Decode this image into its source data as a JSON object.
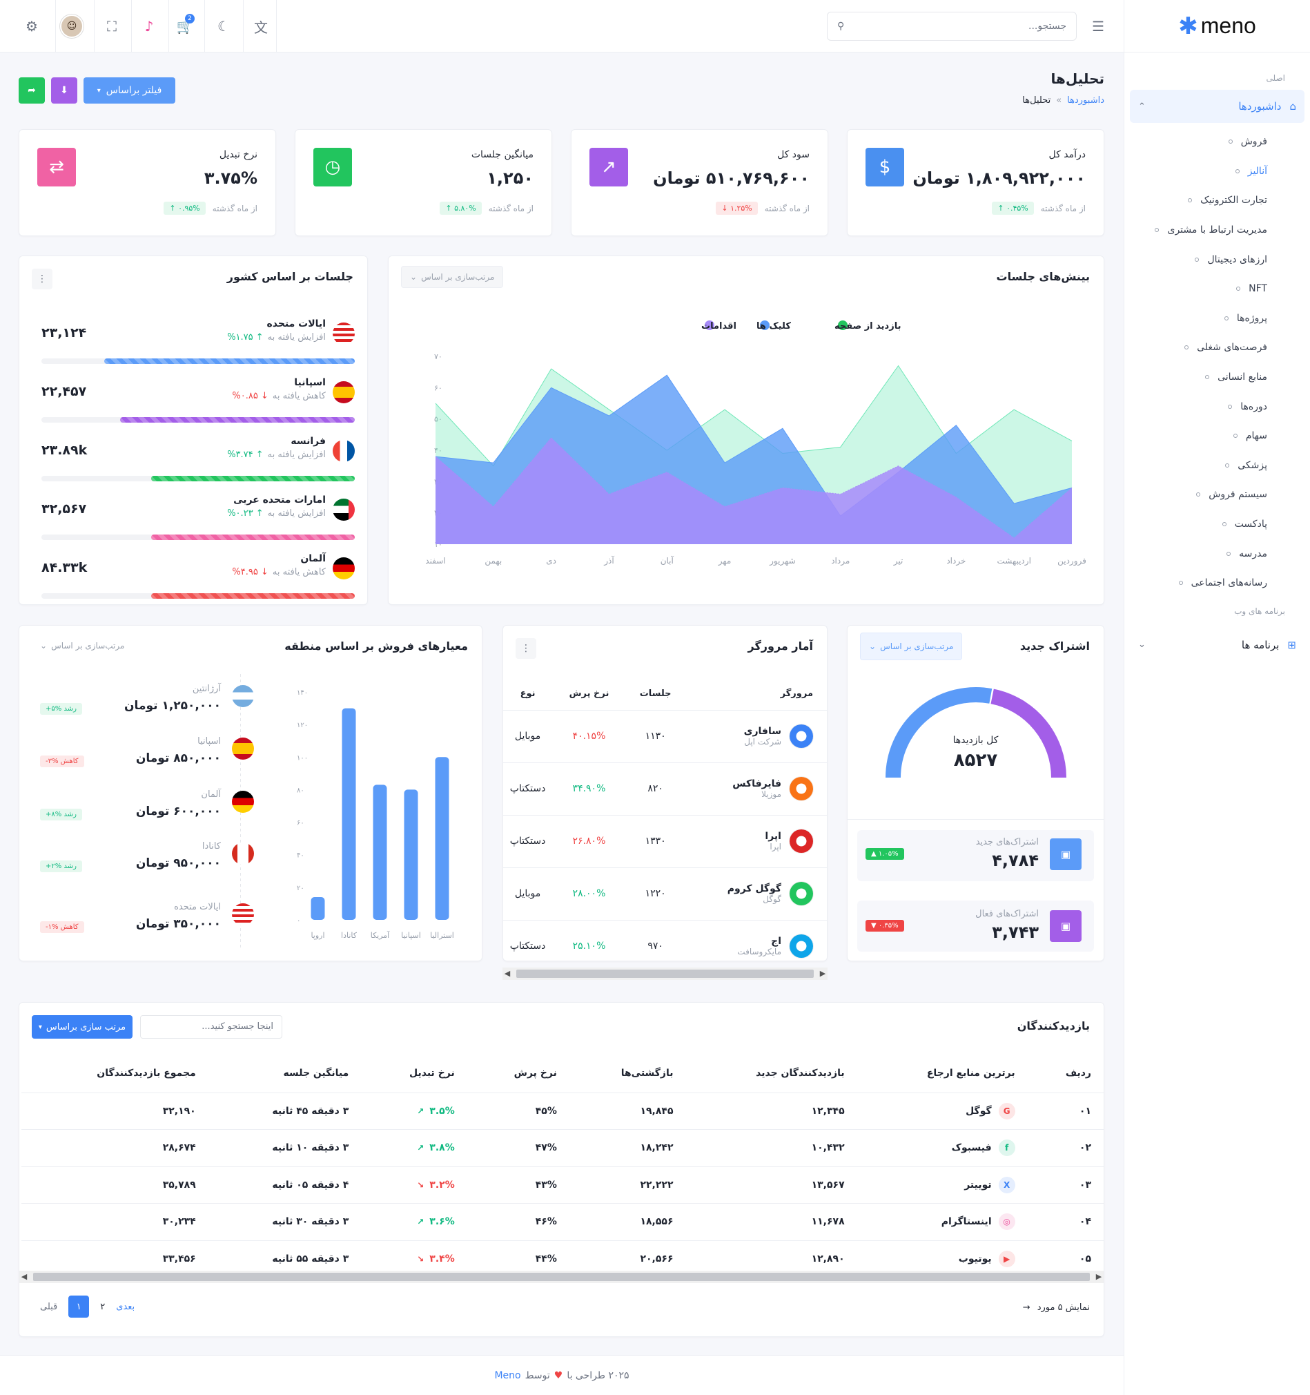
{
  "brand": {
    "name": "meno"
  },
  "sidebar": {
    "caption_main": "اصلی",
    "dashboards_label": "داشبوردها",
    "items": [
      "فروش",
      "آنالیز",
      "تجارت الکترونیک",
      "مدیریت ارتباط با مشتری",
      "ارزهای دیجیتال",
      "NFT",
      "پروژه‌ها",
      "فرصت‌های شغلی",
      "منابع انسانی",
      "دوره‌ها",
      "سهام",
      "پزشکی",
      "سیستم فروش",
      "پادکست",
      "مدرسه",
      "رسانه‌های اجتماعی"
    ],
    "active_item": "آنالیز",
    "caption_web": "برنامه های وب",
    "apps_label": "برنامه ها"
  },
  "header": {
    "search_placeholder": "جستجو...",
    "cart_badge": "2"
  },
  "page": {
    "title": "تحلیل‌ها",
    "breadcrumb_parent": "داشبوردها",
    "breadcrumb_sep": "»",
    "breadcrumb_current": "تحلیل‌ها",
    "filter_button": "فیلتر براساس"
  },
  "stats": [
    {
      "label": "درآمد کل",
      "value": "۱,۸۰۹,۹۲۲,۰۰۰ تومان",
      "change": "۰.۴۵% ↑",
      "dir": "up",
      "since": "از ماه گذشته",
      "icon": "dollar-icon",
      "color": "#4a90f0"
    },
    {
      "label": "سود کل",
      "value": "۵۱۰,۷۶۹,۶۰۰ تومان",
      "change": "۱.۲۵% ↓",
      "dir": "down",
      "since": "از ماه گذشته",
      "icon": "trending-up-icon",
      "color": "#a35ee8"
    },
    {
      "label": "میانگین جلسات",
      "value": "۱,۲۵۰",
      "change": "۵.۸۰% ↑",
      "dir": "up",
      "since": "از ماه گذشته",
      "icon": "stopwatch-icon",
      "color": "#22c55e"
    },
    {
      "label": "نرخ تبدیل",
      "value": "۳.۷۵%",
      "change": "۰.۹۵% ↑",
      "dir": "up",
      "since": "از ماه گذشته",
      "icon": "exchange-icon",
      "color": "#f062a4"
    }
  ],
  "sessions_chart": {
    "title": "بینش‌های جلسات",
    "sort_label": "مرتب‌سازی بر اساس",
    "chart_data": {
      "type": "area",
      "categories": [
        "فروردین",
        "اردیبهشت",
        "خرداد",
        "تیر",
        "مرداد",
        "شهریور",
        "مهر",
        "آبان",
        "آذر",
        "دی",
        "بهمن",
        "اسفند"
      ],
      "y_ticks": [
        "۱۰",
        "۲۰",
        "۳۰",
        "۴۰",
        "۵۰",
        "۶۰",
        "۷۰"
      ],
      "ylim": [
        10,
        70
      ],
      "series": [
        {
          "name": "بازدید از صفحه",
          "color": "#6ee7b7",
          "values": [
            43,
            53,
            39,
            67,
            41,
            39,
            53,
            40,
            53,
            66,
            35,
            55
          ]
        },
        {
          "name": "کلیک ها",
          "color": "#5b9bf8",
          "values": [
            28,
            23,
            48,
            33,
            19,
            47,
            36,
            64,
            51,
            60,
            36,
            38
          ]
        },
        {
          "name": "اقدامات",
          "color": "#a78bfa",
          "values": [
            28,
            12,
            25,
            35,
            26,
            28,
            22,
            33,
            26,
            44,
            22,
            38
          ]
        }
      ]
    }
  },
  "country_sessions": {
    "title": "جلسات بر اساس کشور",
    "rows": [
      {
        "name": "ایالات متحده",
        "sub": "افزایش یافته به",
        "pct": "↑ %۱.۷۵",
        "dir": "up",
        "value": "۲۳,۱۲۴",
        "progress": 0.8,
        "color": "#5b9bf8"
      },
      {
        "name": "اسپانیا",
        "sub": "کاهش یافته به",
        "pct": "↓ %۰.۸۵",
        "dir": "down",
        "value": "۲۲,۴۵۷",
        "progress": 0.75,
        "color": "#a35ee8"
      },
      {
        "name": "فرانسه",
        "sub": "افزایش یافته به",
        "pct": "↑ %۳.۷۴",
        "dir": "up",
        "value": "۲۳.۸۹k",
        "progress": 0.65,
        "color": "#22c55e"
      },
      {
        "name": "امارات متحده عربی",
        "sub": "افزایش یافته به",
        "pct": "↑ %۰.۲۳",
        "dir": "up",
        "value": "۳۲,۵۶۷",
        "progress": 0.65,
        "color": "#f062a4"
      },
      {
        "name": "آلمان",
        "sub": "کاهش یافته به",
        "pct": "↓ %۴.۹۵",
        "dir": "down",
        "value": "۸۴.۳۳k",
        "progress": 0.65,
        "color": "#f05252"
      }
    ]
  },
  "subscription": {
    "title": "اشتراک جدید",
    "sort_label": "مرتب‌سازی بر اساس",
    "gauge_label": "کل بازدیدها",
    "gauge_value": "۸۵۲۷",
    "gauge_split": 0.56,
    "new_label": "اشتراک‌های جدید",
    "new_value": "۴,۷۸۴",
    "new_change": "۱.۰۵% ▲",
    "active_label": "اشتراک‌های فعال",
    "active_value": "۳,۷۴۳",
    "active_change": "۰.۳۵% ▼"
  },
  "browsers": {
    "title": "آمار مرورگر",
    "headers": {
      "browser": "مرورگر",
      "sessions": "جلسات",
      "bounce": "نرخ پرش",
      "type": "نوع"
    },
    "rows": [
      {
        "name": "سافاری",
        "company": "شرکت اپل",
        "sessions": "۱۱۳۰",
        "bounce": "۴۰.۱۵%",
        "dir": "down",
        "type": "موبایل",
        "icon": "safari-icon",
        "color": "#3b82f6"
      },
      {
        "name": "فایرفاکس",
        "company": "موزیلا",
        "sessions": "۸۲۰",
        "bounce": "۳۴.۹۰%",
        "dir": "up",
        "type": "دستکتاپ",
        "icon": "firefox-icon",
        "color": "#f97316"
      },
      {
        "name": "اپرا",
        "company": "اپرا",
        "sessions": "۱۳۳۰",
        "bounce": "۲۶.۸۰%",
        "dir": "down",
        "type": "دستکتاپ",
        "icon": "opera-icon",
        "color": "#dc2626"
      },
      {
        "name": "گوگل کروم",
        "company": "گوگل",
        "sessions": "۱۲۲۰",
        "bounce": "۲۸.۰۰%",
        "dir": "up",
        "type": "موبایل",
        "icon": "chrome-icon",
        "color": "#22c55e"
      },
      {
        "name": "اج",
        "company": "مایکروسافت",
        "sessions": "۹۷۰",
        "bounce": "۲۵.۱۰%",
        "dir": "up",
        "type": "دستکتاپ",
        "icon": "edge-icon",
        "color": "#0ea5e9"
      }
    ]
  },
  "region_sales": {
    "title": "معیارهای فروش بر اساس منطقه",
    "sort_label": "مرتب‌سازی بر اساس",
    "list": [
      {
        "name": "آرژانتین",
        "value": "۱,۲۵۰,۰۰۰ تومان",
        "pill": "رشد %۵+",
        "dir": "up"
      },
      {
        "name": "اسپانیا",
        "value": "۸۵۰,۰۰۰ تومان",
        "pill": "کاهش %۳-",
        "dir": "down"
      },
      {
        "name": "آلمان",
        "value": "۶۰۰,۰۰۰ تومان",
        "pill": "رشد %۸+",
        "dir": "up"
      },
      {
        "name": "کانادا",
        "value": "۹۵۰,۰۰۰ تومان",
        "pill": "رشد %۲+",
        "dir": "up"
      },
      {
        "name": "ایالات متحده",
        "value": "۳۵۰,۰۰۰ تومان",
        "pill": "کاهش %۱-",
        "dir": "down"
      }
    ],
    "chart_data": {
      "type": "bar",
      "categories": [
        "اروپا",
        "کانادا",
        "آمریکا",
        "اسپانیا",
        "استرالیا"
      ],
      "values": [
        14,
        130,
        83,
        80,
        100
      ],
      "y_ticks": [
        "۰",
        "۲۰",
        "۴۰",
        "۶۰",
        "۸۰",
        "۱۰۰",
        "۱۲۰",
        "۱۴۰"
      ],
      "ylim": [
        0,
        140
      ],
      "color": "#5b9bf8"
    }
  },
  "visitors": {
    "title": "بازدیدکنندگان",
    "search_placeholder": "اینجا جستجو کنید...",
    "sort_button": "مرتب سازی براساس",
    "headers": [
      "ردیف",
      "برترین منابع ارجاع",
      "بازدیدکنندگان جدید",
      "بازگشتی‌ها",
      "نرخ پرش",
      "نرخ تبدیل",
      "میانگین جلسه",
      "مجموع بازدیدکنندگان"
    ],
    "rows": [
      {
        "idx": "۰۱",
        "source": "گوگل",
        "icon": "google-icon",
        "color": "#ef4444",
        "newv": "۱۲,۳۴۵",
        "ret": "۱۹,۸۴۵",
        "bounce": "۴۵%",
        "conv": "۳.۵%",
        "dir": "up",
        "avg": "۳ دقیقه ۴۵ ثانیه",
        "total": "۳۲,۱۹۰"
      },
      {
        "idx": "۰۲",
        "source": "فیسبوک",
        "icon": "facebook-icon",
        "color": "#10b981",
        "newv": "۱۰,۴۳۲",
        "ret": "۱۸,۲۴۲",
        "bounce": "۴۷%",
        "conv": "۳.۸%",
        "dir": "up",
        "avg": "۳ دقیقه ۱۰ ثانیه",
        "total": "۲۸,۶۷۴"
      },
      {
        "idx": "۰۳",
        "source": "توییتر",
        "icon": "x-icon",
        "color": "#3b82f6",
        "newv": "۱۳,۵۶۷",
        "ret": "۲۲,۲۲۲",
        "bounce": "۴۳%",
        "conv": "۳.۲%",
        "dir": "down",
        "avg": "۴ دقیقه ۰۵ ثانیه",
        "total": "۳۵,۷۸۹"
      },
      {
        "idx": "۰۴",
        "source": "اینستاگرام",
        "icon": "instagram-icon",
        "color": "#ec4899",
        "newv": "۱۱,۶۷۸",
        "ret": "۱۸,۵۵۶",
        "bounce": "۴۶%",
        "conv": "۳.۶%",
        "dir": "up",
        "avg": "۳ دقیقه ۳۰ ثانیه",
        "total": "۳۰,۲۳۴"
      },
      {
        "idx": "۰۵",
        "source": "یوتیوب",
        "icon": "youtube-icon",
        "color": "#ef4444",
        "newv": "۱۲,۸۹۰",
        "ret": "۲۰,۵۶۶",
        "bounce": "۴۴%",
        "conv": "۳.۴%",
        "dir": "down",
        "avg": "۳ دقیقه ۵۵ ثانیه",
        "total": "۳۳,۴۵۶"
      }
    ],
    "showing": "نمایش ۵ مورد",
    "prev": "قبلی",
    "next": "بعدی",
    "pages": [
      "۱",
      "۲"
    ]
  },
  "footer": {
    "text": "۲۰۲۵ طراحی با",
    "by": "توسط",
    "brand": "Meno"
  }
}
